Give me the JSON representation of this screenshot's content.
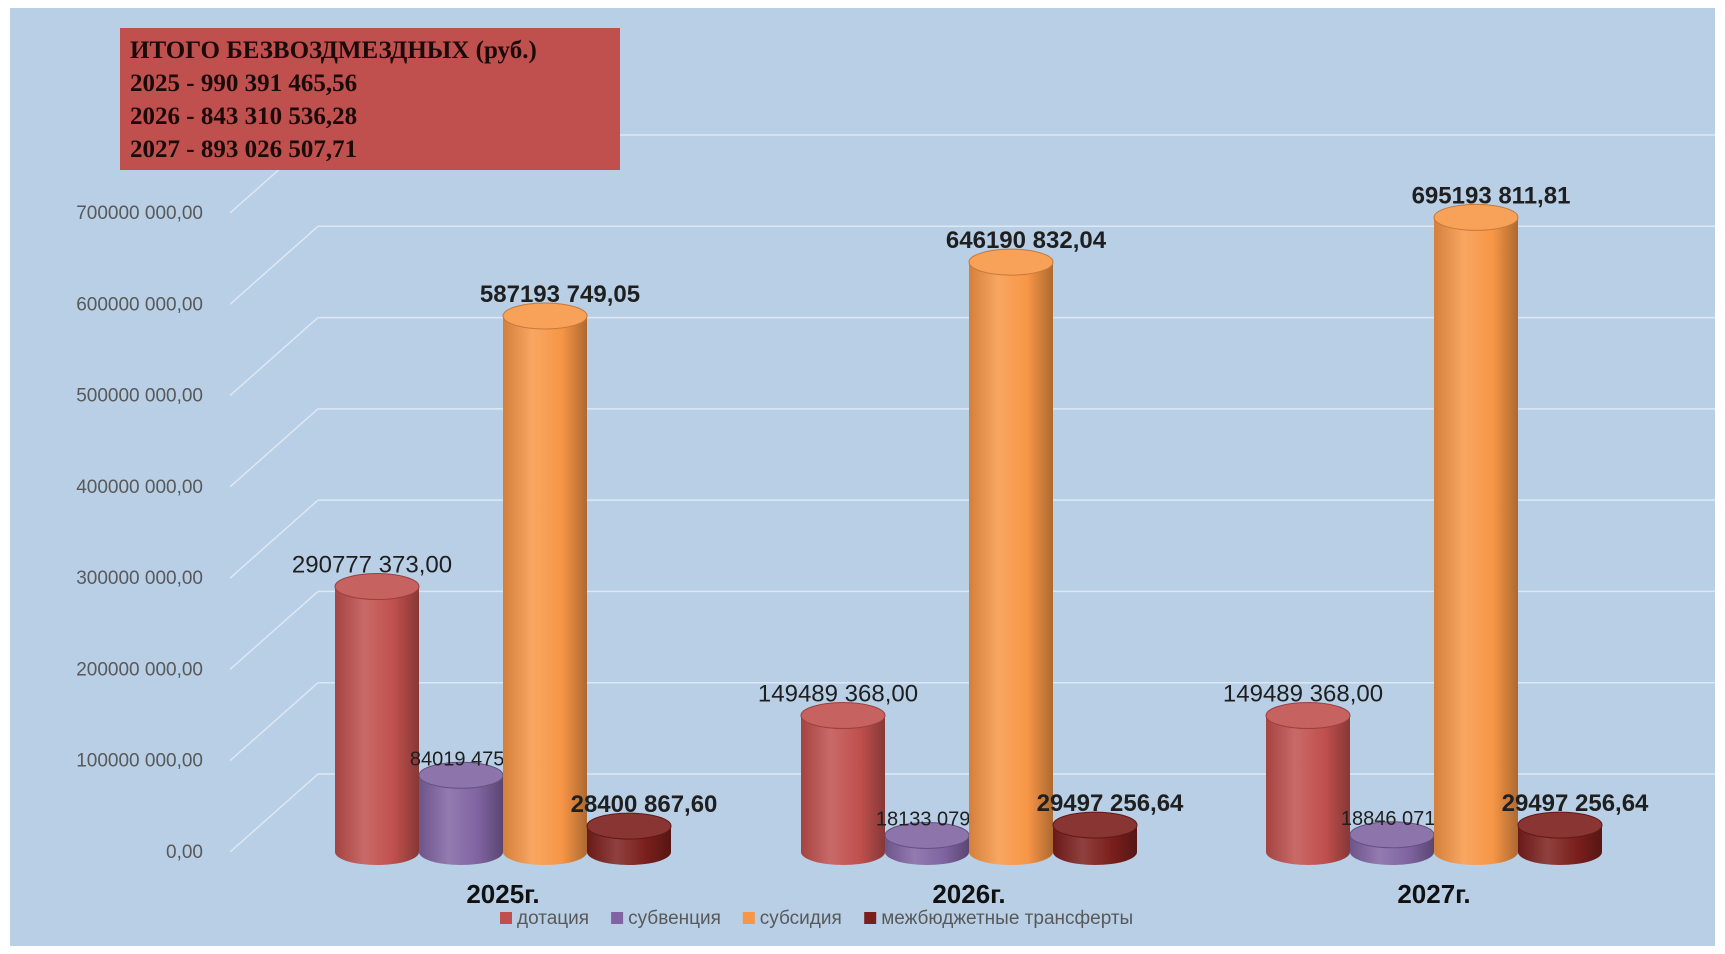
{
  "totals": {
    "title": "ИТОГО БЕЗВОЗДМЕЗДНЫХ (руб.)",
    "lines": [
      "2025 - 990 391 465,56",
      "2026 - 843 310 536,28",
      "2027 - 893 026 507,71"
    ]
  },
  "chart_data": {
    "type": "bar",
    "style": "3d-cylinder",
    "title": "",
    "xlabel": "",
    "ylabel": "",
    "ylim": [
      0,
      700000000
    ],
    "grid": true,
    "legend_position": "bottom",
    "categories": [
      "2025г.",
      "2026г.",
      "2027г."
    ],
    "yticks": [
      0,
      100000000,
      200000000,
      300000000,
      400000000,
      500000000,
      600000000,
      700000000
    ],
    "ytick_labels": [
      "0,00",
      "100000 000,00",
      "200000 000,00",
      "300000 000,00",
      "400000 000,00",
      "500000 000,00",
      "600000 000,00",
      "700000 000,00"
    ],
    "series": [
      {
        "name": "дотация",
        "color": "#c0504d",
        "values": [
          290777373.0,
          149489368.0,
          149489368.0
        ],
        "labels": [
          "290777 373,00",
          "149489 368,00",
          "149489 368,00"
        ]
      },
      {
        "name": "субвенция",
        "color": "#8064a2",
        "values": [
          84019475.91,
          18133079.6,
          18846071.26
        ],
        "labels": [
          "84019 475,91",
          "18133 079,60",
          "18846 071,26"
        ]
      },
      {
        "name": "субсидия",
        "color": "#f79646",
        "values": [
          587193749.05,
          646190832.04,
          695193811.81
        ],
        "labels": [
          "587193 749,05",
          "646190 832,04",
          "695193 811,81"
        ]
      },
      {
        "name": "межбюджетные трансферты",
        "color": "#7b1f1c",
        "values": [
          28400867.6,
          29497256.64,
          29497256.64
        ],
        "labels": [
          "28400 867,60",
          "29497 256,64",
          "29497 256,64"
        ]
      }
    ]
  }
}
